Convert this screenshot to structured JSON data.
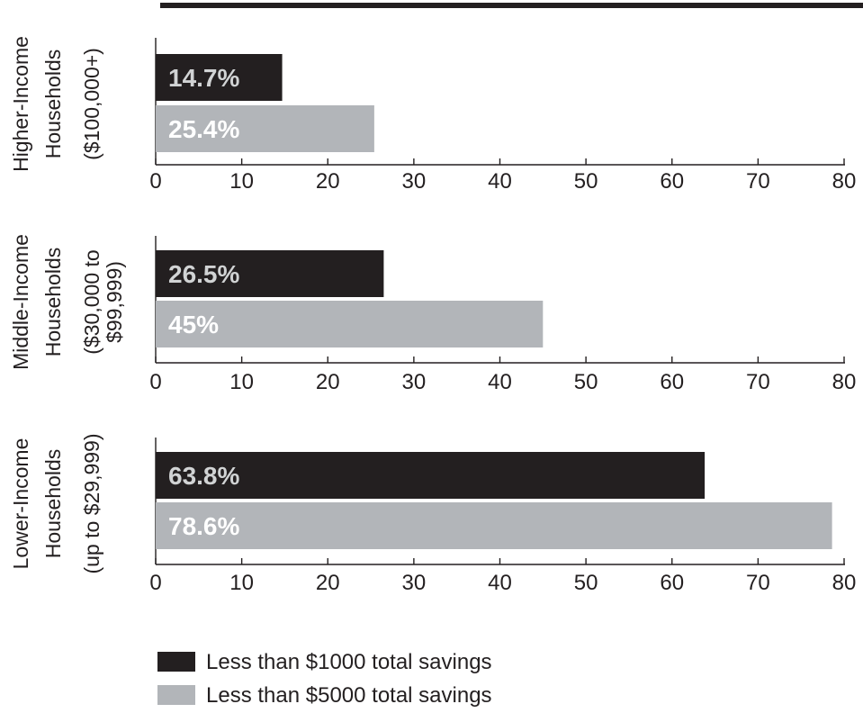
{
  "chart_data": {
    "type": "bar",
    "orientation": "horizontal",
    "xlim": [
      0,
      80
    ],
    "ticks": [
      0,
      10,
      20,
      30,
      40,
      50,
      60,
      70,
      80
    ],
    "grid": false,
    "legend_position": "bottom-left",
    "series": [
      {
        "name": "Less than $1000 total savings",
        "color": "#231f20",
        "label_color": "#d1d3d4"
      },
      {
        "name": "Less than $5000 total savings",
        "color": "#b2b5b9",
        "label_color": "#ffffff"
      }
    ],
    "groups": [
      {
        "label_line1": "Higher-Income",
        "label_line2": "Households",
        "range_lines": [
          "($100,000+)"
        ],
        "values": [
          14.7,
          25.4
        ],
        "value_labels": [
          "14.7%",
          "25.4%"
        ]
      },
      {
        "label_line1": "Middle-Income",
        "label_line2": "Households",
        "range_lines": [
          "($30,000 to",
          "$99,999)"
        ],
        "values": [
          26.5,
          45
        ],
        "value_labels": [
          "26.5%",
          "45%"
        ]
      },
      {
        "label_line1": "Lower-Income",
        "label_line2": "Households",
        "range_lines": [
          "(up to $29,999)"
        ],
        "values": [
          63.8,
          78.6
        ],
        "value_labels": [
          "63.8%",
          "78.6%"
        ]
      }
    ]
  }
}
